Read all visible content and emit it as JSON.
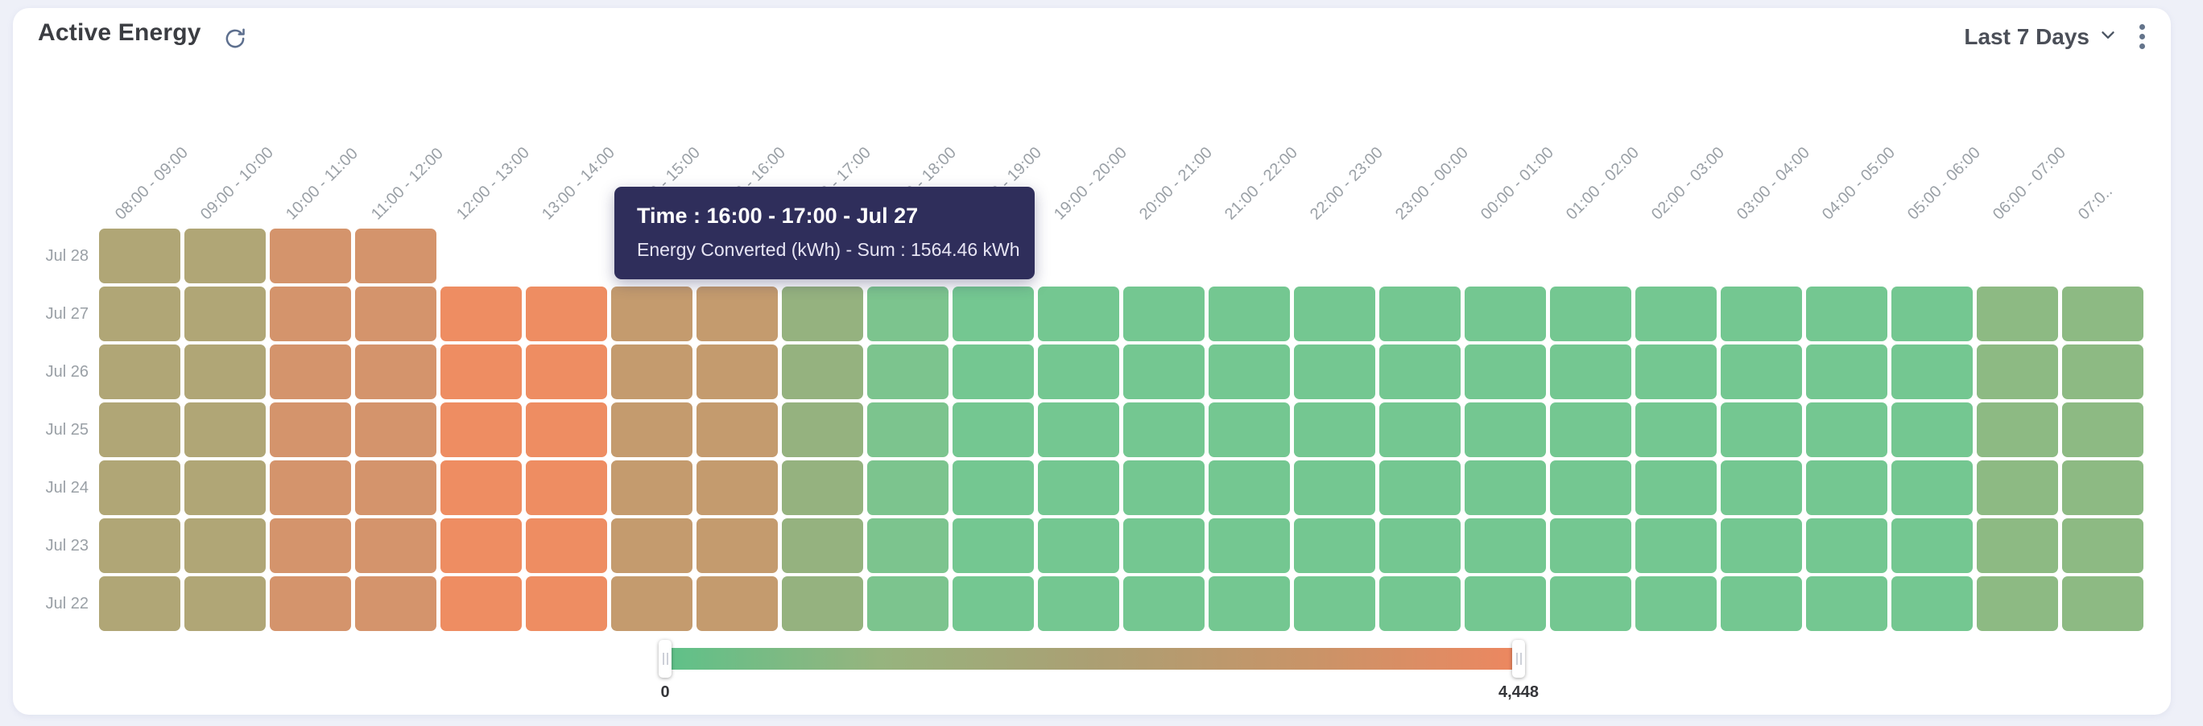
{
  "header": {
    "title": "Active Energy",
    "range_label": "Last 7 Days"
  },
  "tooltip": {
    "title": "Time : 16:00 - 17:00 - Jul 27",
    "body": "Energy Converted (kWh) - Sum : 1564.46 kWh"
  },
  "legend": {
    "min_label": "0",
    "max_label": "4,448",
    "gradient_stops": [
      "#5ec189",
      "#96b47e",
      "#ab9f73",
      "#c89468",
      "#ed8760"
    ]
  },
  "chart_data": {
    "type": "heatmap",
    "title": "Active Energy",
    "series_name": "Energy Converted (kWh)",
    "unit": "kWh",
    "x_labels": [
      "08:00 - 09:00",
      "09:00 - 10:00",
      "10:00 - 11:00",
      "11:00 - 12:00",
      "12:00 - 13:00",
      "13:00 - 14:00",
      "14:00 - 15:00",
      "15:00 - 16:00",
      "16:00 - 17:00",
      "17:00 - 18:00",
      "18:00 - 19:00",
      "19:00 - 20:00",
      "20:00 - 21:00",
      "21:00 - 22:00",
      "22:00 - 23:00",
      "23:00 - 00:00",
      "00:00 - 01:00",
      "01:00 - 02:00",
      "02:00 - 03:00",
      "03:00 - 04:00",
      "04:00 - 05:00",
      "05:00 - 06:00",
      "06:00 - 07:00",
      "07:0.."
    ],
    "y_labels": [
      "Jul 28",
      "Jul 27",
      "Jul 26",
      "Jul 25",
      "Jul 24",
      "Jul 23",
      "Jul 22"
    ],
    "color_scale": {
      "min": 0,
      "max": 4448,
      "low_color": "#5ec189",
      "mid_color": "#ab9f73",
      "high_color": "#ed8760"
    },
    "column_colors": [
      "#b0a676",
      "#b0a676",
      "#d4946c",
      "#d4946c",
      "#ee8d62",
      "#ee8d62",
      "#c49b6e",
      "#c49b6e",
      "#95b27f",
      "#7cc48e",
      "#74c791",
      "#74c791",
      "#74c791",
      "#74c791",
      "#74c791",
      "#74c791",
      "#74c791",
      "#74c791",
      "#74c791",
      "#74c791",
      "#74c791",
      "#74c791",
      "#8dba83",
      "#8dba83"
    ],
    "highlighted_cell": {
      "row": "Jul 27",
      "column": "16:00 - 17:00",
      "sum_kwh": 1564.46
    },
    "rows": [
      {
        "label": "Jul 28",
        "values": [
          2450,
          2450,
          3450,
          3450
        ]
      },
      {
        "label": "Jul 27",
        "values": [
          2450,
          2450,
          3450,
          3450,
          4250,
          4250,
          3050,
          3050,
          1564.46,
          750,
          600,
          600,
          600,
          600,
          600,
          600,
          600,
          600,
          600,
          600,
          600,
          600,
          1150,
          1150
        ]
      },
      {
        "label": "Jul 26",
        "values": [
          2450,
          2450,
          3450,
          3450,
          4250,
          4250,
          3050,
          3050,
          1570,
          750,
          600,
          600,
          600,
          600,
          600,
          600,
          600,
          600,
          600,
          600,
          600,
          600,
          1150,
          1150
        ]
      },
      {
        "label": "Jul 25",
        "values": [
          2450,
          2450,
          3450,
          3450,
          4250,
          4250,
          3050,
          3050,
          1570,
          750,
          600,
          600,
          600,
          600,
          600,
          600,
          600,
          600,
          600,
          600,
          600,
          600,
          1150,
          1150
        ]
      },
      {
        "label": "Jul 24",
        "values": [
          2450,
          2450,
          3450,
          3450,
          4250,
          4250,
          3050,
          3050,
          1570,
          750,
          600,
          600,
          600,
          600,
          600,
          600,
          600,
          600,
          600,
          600,
          600,
          600,
          1150,
          1150
        ]
      },
      {
        "label": "Jul 23",
        "values": [
          2450,
          2450,
          3450,
          3450,
          4250,
          4250,
          3050,
          3050,
          1570,
          750,
          600,
          600,
          600,
          600,
          600,
          600,
          600,
          600,
          600,
          600,
          600,
          600,
          1150,
          1150
        ]
      },
      {
        "label": "Jul 22",
        "values": [
          2450,
          2450,
          3450,
          3450,
          4250,
          4250,
          3050,
          3050,
          1570,
          750,
          600,
          600,
          600,
          600,
          600,
          600,
          600,
          600,
          600,
          600,
          600,
          600,
          1150,
          1150
        ]
      }
    ],
    "values_note": "values estimated from color scale except highlighted_cell which is shown in tooltip",
    "legend_position": "bottom-center",
    "grid": "off"
  }
}
